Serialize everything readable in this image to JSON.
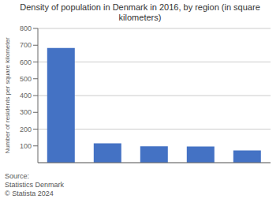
{
  "chart_data": {
    "type": "bar",
    "title": "Density of population in Denmark in 2016, by region (in square kilometers)",
    "categories": [
      null,
      null,
      null,
      null,
      null
    ],
    "values": [
      683,
      115,
      98,
      97,
      73
    ],
    "color": "#4472c4",
    "ylabel": "Number of residents per square kilometer",
    "ylim": [
      0,
      800
    ],
    "yticks": [
      100,
      200,
      300,
      400,
      500,
      600,
      700,
      800
    ],
    "grid": true,
    "annotation": "Source:\nStatistics Denmark\n© Statista 2024"
  }
}
